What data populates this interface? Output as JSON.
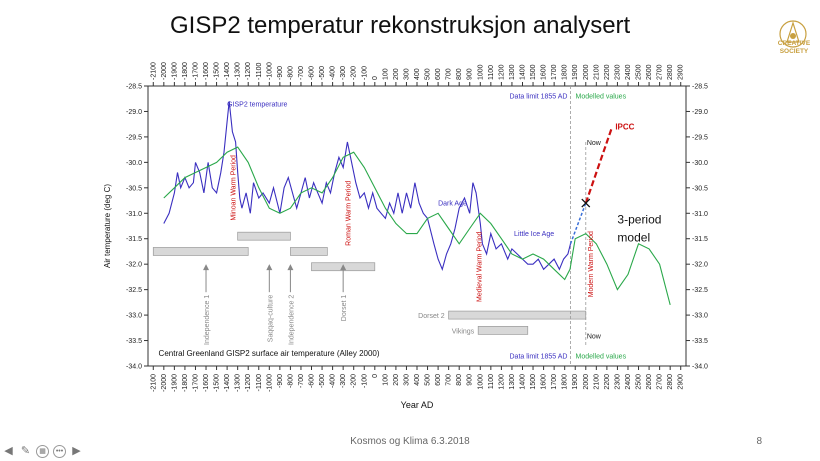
{
  "slide": {
    "title": "GISP2 temperatur rekonstruksjon analysert",
    "footer": "Kosmos og Klima 6.3.2018",
    "page_number": "8",
    "logo_line1": "CREATIVE",
    "logo_line2": "SOCIETY"
  },
  "colors": {
    "gisp2": "#3a2fc0",
    "model": "#2aa84a",
    "ipcc": "#cc1111",
    "bars": "#d8d8d8",
    "labels_red": "#cc1111"
  },
  "chart_data": {
    "type": "line",
    "title": "Central Greenland GISP2 surface air temperature (Alley 2000)",
    "xlabel": "Year AD",
    "ylabel": "Air temperature (deg C)",
    "xlim": [
      -2150,
      2950
    ],
    "ylim": [
      -34.0,
      -28.5
    ],
    "x_ticks": [
      -2100,
      -2000,
      -1900,
      -1800,
      -1700,
      -1600,
      -1500,
      -1400,
      -1300,
      -1200,
      -1100,
      -1000,
      -900,
      -800,
      -700,
      -600,
      -500,
      -400,
      -300,
      -200,
      -100,
      0,
      100,
      200,
      300,
      400,
      500,
      600,
      700,
      800,
      900,
      1000,
      1100,
      1200,
      1300,
      1400,
      1500,
      1600,
      1700,
      1800,
      1900,
      2000,
      2100,
      2200,
      2300,
      2400,
      2500,
      2600,
      2700,
      2800,
      2900
    ],
    "y_ticks": [
      -28.5,
      -29.0,
      -29.5,
      -30.0,
      -30.5,
      -31.0,
      -31.5,
      -32.0,
      -32.5,
      -33.0,
      -33.5,
      -34.0
    ],
    "series": [
      {
        "name": "GISP2 temperature",
        "color": "#3a2fc0",
        "x": [
          -2000,
          -1950,
          -1900,
          -1870,
          -1840,
          -1800,
          -1760,
          -1720,
          -1700,
          -1660,
          -1620,
          -1580,
          -1540,
          -1500,
          -1460,
          -1430,
          -1400,
          -1380,
          -1350,
          -1320,
          -1300,
          -1280,
          -1260,
          -1220,
          -1180,
          -1150,
          -1100,
          -1060,
          -1000,
          -960,
          -900,
          -860,
          -820,
          -780,
          -740,
          -700,
          -660,
          -620,
          -580,
          -540,
          -500,
          -460,
          -420,
          -380,
          -340,
          -300,
          -260,
          -220,
          -180,
          -140,
          -100,
          -60,
          -20,
          20,
          60,
          100,
          140,
          180,
          220,
          260,
          300,
          340,
          380,
          420,
          460,
          500,
          560,
          600,
          640,
          680,
          720,
          760,
          800,
          850,
          900,
          930,
          960,
          980,
          1000,
          1020,
          1060,
          1100,
          1150,
          1200,
          1260,
          1300,
          1350,
          1400,
          1450,
          1500,
          1550,
          1600,
          1650,
          1700,
          1750,
          1790,
          1830,
          1855
        ],
        "y": [
          -31.2,
          -31.0,
          -30.6,
          -30.2,
          -30.5,
          -30.3,
          -30.5,
          -30.4,
          -30.0,
          -30.2,
          -30.6,
          -30.0,
          -30.5,
          -30.6,
          -30.2,
          -29.8,
          -29.2,
          -28.8,
          -29.4,
          -29.6,
          -30.2,
          -30.7,
          -30.9,
          -30.6,
          -31.0,
          -30.4,
          -30.7,
          -30.6,
          -30.8,
          -30.5,
          -31.0,
          -30.5,
          -30.3,
          -30.6,
          -30.9,
          -30.6,
          -30.3,
          -30.7,
          -30.4,
          -30.6,
          -30.8,
          -30.4,
          -30.6,
          -30.2,
          -29.9,
          -30.1,
          -29.6,
          -30.0,
          -30.4,
          -30.7,
          -30.6,
          -30.9,
          -30.6,
          -30.9,
          -31.0,
          -31.1,
          -30.8,
          -31.0,
          -30.6,
          -31.0,
          -30.6,
          -30.9,
          -30.4,
          -30.8,
          -31.0,
          -31.1,
          -31.6,
          -31.9,
          -32.1,
          -31.8,
          -31.6,
          -31.3,
          -30.9,
          -30.7,
          -31.0,
          -30.4,
          -30.6,
          -30.9,
          -31.2,
          -31.6,
          -31.8,
          -31.4,
          -31.7,
          -31.6,
          -31.9,
          -31.7,
          -31.8,
          -31.9,
          -32.0,
          -32.0,
          -31.9,
          -32.1,
          -32.0,
          -31.9,
          -32.1,
          -31.9,
          -31.8,
          -31.6
        ]
      },
      {
        "name": "",
        "color": "#2aa84a",
        "x": [
          -2000,
          -1900,
          -1800,
          -1700,
          -1600,
          -1500,
          -1400,
          -1300,
          -1200,
          -1100,
          -1000,
          -900,
          -800,
          -700,
          -600,
          -500,
          -400,
          -300,
          -200,
          -100,
          0,
          100,
          200,
          300,
          400,
          500,
          600,
          700,
          800,
          900,
          1000,
          1100,
          1200,
          1300,
          1400,
          1500,
          1600,
          1700,
          1800,
          1850,
          1900,
          2000,
          2100,
          2200,
          2300,
          2400,
          2500,
          2600,
          2700,
          2800
        ],
        "y": [
          -30.7,
          -30.5,
          -30.3,
          -30.2,
          -30.1,
          -30.0,
          -29.8,
          -29.7,
          -30.0,
          -30.5,
          -30.9,
          -31.0,
          -30.9,
          -30.6,
          -30.5,
          -30.6,
          -30.3,
          -29.9,
          -29.8,
          -30.1,
          -30.5,
          -30.9,
          -31.2,
          -31.4,
          -31.4,
          -31.1,
          -31.0,
          -31.3,
          -31.6,
          -31.3,
          -31.0,
          -31.2,
          -31.5,
          -31.8,
          -31.9,
          -31.8,
          -31.9,
          -32.1,
          -32.3,
          -32.1,
          -31.5,
          -31.4,
          -31.6,
          -32.0,
          -32.5,
          -32.2,
          -31.6,
          -31.7,
          -32.0,
          -32.8
        ]
      },
      {
        "name": "IPCC",
        "color": "#cc1111",
        "x": [
          2000,
          2250
        ],
        "y": [
          -30.8,
          -29.3
        ]
      }
    ],
    "annotations": {
      "data_limit_top": "Data limit 1855 AD",
      "modelled_top": "Modelled values",
      "data_limit_bottom": "Data limit 1855 AD",
      "modelled_bottom": "Modelled values",
      "now_top": "Now",
      "now_bottom": "Now",
      "ipcc": "IPCC",
      "gisp2_label": "GISP2 temperature",
      "minoan": "Minoan Warm Period",
      "roman": "Roman Warm Period",
      "dark_age": "Dark Age",
      "medieval": "Medieval Warm Period",
      "little_ice_age": "Little Ice Age",
      "modern": "Modern Warm Period",
      "model_line1": "3-period",
      "model_line2": "model",
      "independence1": "Independence 1",
      "saqqaq": "Saqqaq-culture",
      "independence2": "Independence 2",
      "dorset1": "Dorset 1",
      "dorset2": "Dorset 2",
      "vikings": "Vikings"
    },
    "cultures": [
      {
        "key": "independence1",
        "start": -2100,
        "end": -1200,
        "row": -31.75
      },
      {
        "key": "saqqaq",
        "start": -1300,
        "end": -800,
        "row": -31.45
      },
      {
        "key": "independence2",
        "start": -800,
        "end": -450,
        "row": -31.75
      },
      {
        "key": "dorset1",
        "start": -600,
        "end": 0,
        "row": -32.05
      },
      {
        "key": "dorset2",
        "start": 700,
        "end": 2000,
        "row": -33.0
      },
      {
        "key": "vikings",
        "start": 980,
        "end": 1450,
        "row": -33.3
      }
    ]
  }
}
